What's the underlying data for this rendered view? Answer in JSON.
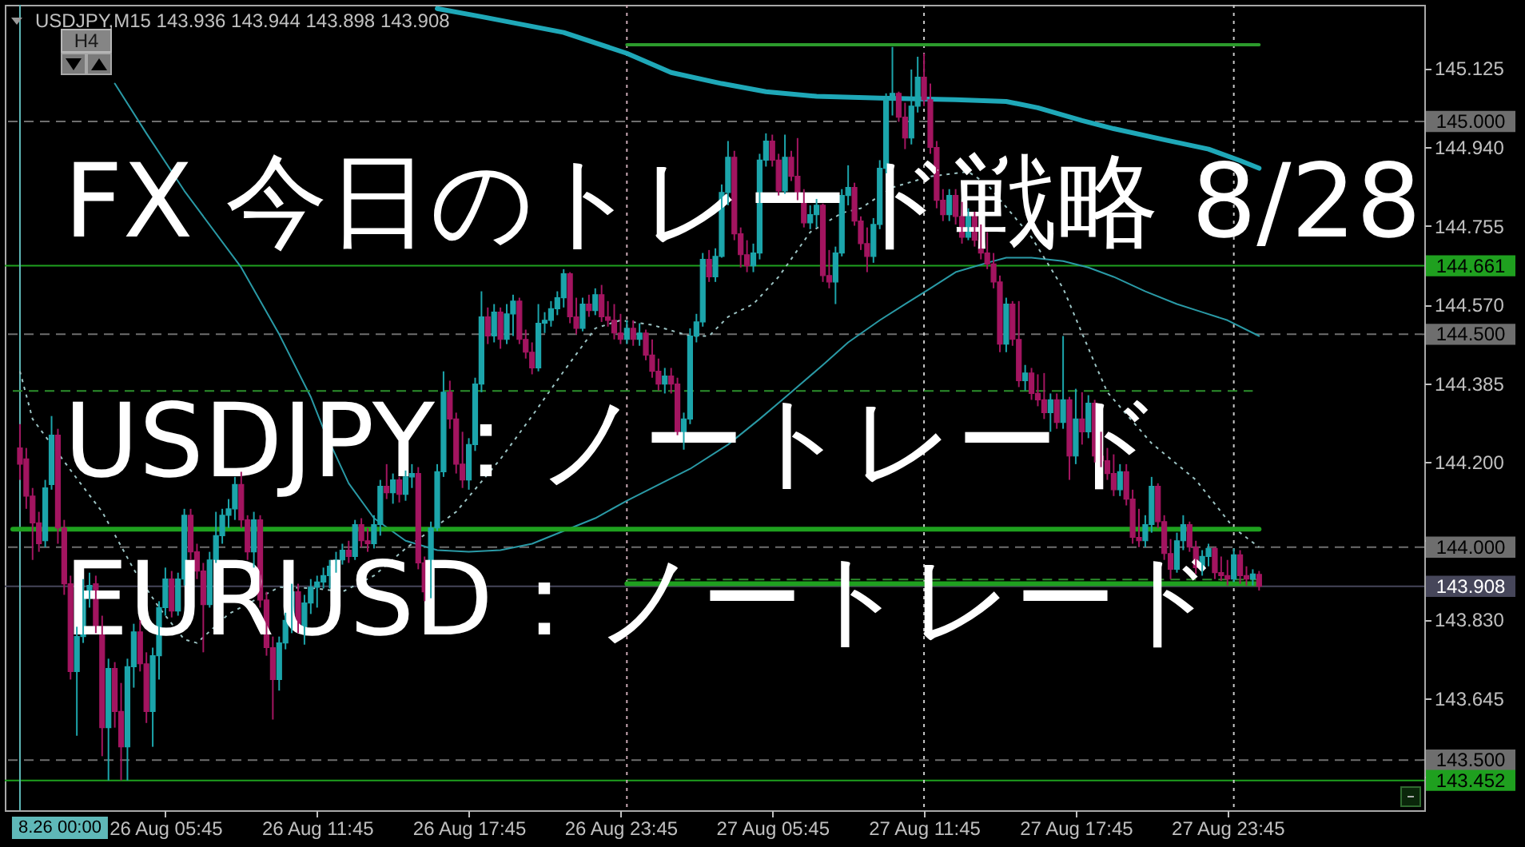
{
  "chart_data": {
    "type": "candlestick",
    "title": "FX 今日のトレード戦略 8/28",
    "subtitle": "USDJPY,M15 143.936 143.944 143.898 143.908",
    "annotations": [
      "USDJPY：ノートレード",
      "EURUSD：ノートレード",
      "H4"
    ],
    "xlim": [
      "--08-25T23:43",
      "--08-28T07:13"
    ],
    "xticks": [
      {
        "value": "--08-26T05:45",
        "label": "26 Aug 05:45"
      },
      {
        "value": "--08-26T11:45",
        "label": "26 Aug 11:45"
      },
      {
        "value": "--08-26T17:45",
        "label": "26 Aug 17:45"
      },
      {
        "value": "--08-26T23:45",
        "label": "26 Aug 23:45"
      },
      {
        "value": "--08-27T05:45",
        "label": "27 Aug 05:45"
      },
      {
        "value": "--08-27T11:45",
        "label": "27 Aug 11:45"
      },
      {
        "value": "--08-27T17:45",
        "label": "27 Aug 17:45"
      },
      {
        "value": "--08-27T23:45",
        "label": "27 Aug 23:45"
      }
    ],
    "ylim": [
      143.382,
      145.274
    ],
    "yticks": [
      145.125,
      {
        "value": 144.94,
        "label": "144.940"
      },
      144.755,
      {
        "value": 144.57,
        "label": "144.570"
      },
      144.385,
      {
        "value": 144.2,
        "label": "144.200"
      },
      {
        "value": 144.015,
        "label": null
      },
      {
        "value": 143.83,
        "label": "143.830"
      },
      143.645,
      {
        "value": 143.46,
        "label": null
      }
    ],
    "ref_lines": [
      {
        "axis": "y",
        "value": 145.0,
        "label": "145.000",
        "color": "#6e6e6e",
        "line_style": "dashed"
      },
      {
        "axis": "y",
        "value": 144.661,
        "label": "144.661",
        "color": "#1fa01f"
      },
      {
        "axis": "y",
        "value": 144.5,
        "label": "144.500",
        "color": "#6e6e6e",
        "line_style": "dashed"
      },
      {
        "axis": "y",
        "value": 144.0,
        "label": "144.000",
        "color": "#6e6e6e",
        "line_style": "dashed"
      },
      {
        "axis": "y",
        "value": 143.908,
        "label": "143.908",
        "color": "#46465a"
      },
      {
        "axis": "y",
        "value": 143.5,
        "label": "143.500",
        "color": "#6e6e6e",
        "line_style": "dashed"
      },
      {
        "axis": "y",
        "value": 143.452,
        "label": "143.452",
        "color": "#1fa01f"
      },
      {
        "axis": "x",
        "value": "--08-26T00:00",
        "label": "8.26 00:00",
        "color": "#5fb8b8"
      },
      {
        "axis": "x",
        "value": "--08-27T00:00",
        "color": "#c8a8b4",
        "line_style": "dotted"
      },
      {
        "axis": "x",
        "value": "--08-27T11:45",
        "color": "#c8c8c8",
        "line_style": "dotted"
      },
      {
        "axis": "x",
        "value": "--08-28T00:00",
        "color": "#c8c8c8",
        "line_style": "dotted"
      }
    ],
    "series": [
      {
        "x": [
          "--08-26T00:00",
          "--08-26T00:15",
          "--08-26T00:30",
          "--08-26T00:45",
          "--08-26T01:00",
          "--08-26T01:15",
          "--08-26T01:30",
          "--08-26T01:45",
          "--08-26T02:00",
          "--08-26T02:15",
          "--08-26T02:30",
          "--08-26T02:45",
          "--08-26T03:00",
          "--08-26T03:15",
          "--08-26T03:30",
          "--08-26T03:45",
          "--08-26T04:00",
          "--08-26T04:15",
          "--08-26T04:30",
          "--08-26T04:45",
          "--08-26T05:00",
          "--08-26T05:15",
          "--08-26T05:30",
          "--08-26T05:45",
          "--08-26T06:00",
          "--08-26T06:15",
          "--08-26T06:30",
          "--08-26T06:45",
          "--08-26T07:00",
          "--08-26T07:15",
          "--08-26T07:30",
          "--08-26T07:45",
          "--08-26T08:00",
          "--08-26T08:15",
          "--08-26T08:30",
          "--08-26T08:45",
          "--08-26T09:00",
          "--08-26T09:15",
          "--08-26T09:30",
          "--08-26T09:45",
          "--08-26T10:00",
          "--08-26T10:15",
          "--08-26T10:30",
          "--08-26T10:45",
          "--08-26T11:00",
          "--08-26T11:15",
          "--08-26T11:30",
          "--08-26T11:45",
          "--08-26T12:00",
          "--08-26T12:15",
          "--08-26T12:30",
          "--08-26T12:45",
          "--08-26T13:00",
          "--08-26T13:15",
          "--08-26T13:30",
          "--08-26T13:45",
          "--08-26T14:00",
          "--08-26T14:15",
          "--08-26T14:30",
          "--08-26T14:45",
          "--08-26T15:00",
          "--08-26T15:15",
          "--08-26T15:30",
          "--08-26T15:45",
          "--08-26T16:00",
          "--08-26T16:15",
          "--08-26T16:30",
          "--08-26T16:45",
          "--08-26T17:00",
          "--08-26T17:15",
          "--08-26T17:30",
          "--08-26T17:45",
          "--08-26T18:00",
          "--08-26T18:15",
          "--08-26T18:30",
          "--08-26T18:45",
          "--08-26T19:00",
          "--08-26T19:15",
          "--08-26T19:30",
          "--08-26T19:45",
          "--08-26T20:00",
          "--08-26T20:15",
          "--08-26T20:30",
          "--08-26T20:45",
          "--08-26T21:00",
          "--08-26T21:15",
          "--08-26T21:30",
          "--08-26T21:45",
          "--08-26T22:00",
          "--08-26T22:15",
          "--08-26T22:30",
          "--08-26T22:45",
          "--08-26T23:00",
          "--08-26T23:15",
          "--08-26T23:30",
          "--08-26T23:45",
          "--08-27T00:00",
          "--08-27T00:15",
          "--08-27T00:30",
          "--08-27T00:45",
          "--08-27T01:00",
          "--08-27T01:15",
          "--08-27T01:30",
          "--08-27T01:45",
          "--08-27T02:00",
          "--08-27T02:15",
          "--08-27T02:30",
          "--08-27T02:45",
          "--08-27T03:00",
          "--08-27T03:15",
          "--08-27T03:30",
          "--08-27T03:45",
          "--08-27T04:00",
          "--08-27T04:15",
          "--08-27T04:30",
          "--08-27T04:45",
          "--08-27T05:00",
          "--08-27T05:15",
          "--08-27T05:30",
          "--08-27T05:45",
          "--08-27T06:00",
          "--08-27T06:15",
          "--08-27T06:30",
          "--08-27T06:45",
          "--08-27T07:00",
          "--08-27T07:15",
          "--08-27T07:30",
          "--08-27T07:45",
          "--08-27T08:00",
          "--08-27T08:15",
          "--08-27T08:30",
          "--08-27T08:45",
          "--08-27T09:00",
          "--08-27T09:15",
          "--08-27T09:30",
          "--08-27T09:45",
          "--08-27T10:00",
          "--08-27T10:15",
          "--08-27T10:30",
          "--08-27T10:45",
          "--08-27T11:00",
          "--08-27T11:15",
          "--08-27T11:30",
          "--08-27T11:45",
          "--08-27T12:00",
          "--08-27T12:15",
          "--08-27T12:30",
          "--08-27T12:45",
          "--08-27T13:00",
          "--08-27T13:15",
          "--08-27T13:30",
          "--08-27T13:45",
          "--08-27T14:00",
          "--08-27T14:15",
          "--08-27T14:30",
          "--08-27T14:45",
          "--08-27T15:00",
          "--08-27T15:15",
          "--08-27T15:30",
          "--08-27T15:45",
          "--08-27T16:00",
          "--08-27T16:15",
          "--08-27T16:30",
          "--08-27T16:45",
          "--08-27T17:00",
          "--08-27T17:15",
          "--08-27T17:30",
          "--08-27T17:45",
          "--08-27T18:00",
          "--08-27T18:15",
          "--08-27T18:30",
          "--08-27T18:45",
          "--08-27T19:00",
          "--08-27T19:15",
          "--08-27T19:30",
          "--08-27T19:45",
          "--08-27T20:00",
          "--08-27T20:15",
          "--08-27T20:30",
          "--08-27T20:45",
          "--08-27T21:00",
          "--08-27T21:15",
          "--08-27T21:30",
          "--08-27T21:45",
          "--08-27T22:00",
          "--08-27T22:15",
          "--08-27T22:30",
          "--08-27T22:45",
          "--08-27T23:00",
          "--08-27T23:15",
          "--08-27T23:30",
          "--08-27T23:45",
          "--08-28T00:00",
          "--08-28T00:15",
          "--08-28T00:30",
          "--08-28T00:45",
          "--08-28T01:00"
        ],
        "ohlc": [
          [
            144.233,
            144.289,
            144.158,
            144.195
          ],
          [
            144.207,
            144.233,
            144.09,
            144.12
          ],
          [
            144.12,
            144.139,
            143.97,
            144.057
          ],
          [
            144.057,
            144.083,
            143.989,
            144.008
          ],
          [
            144.015,
            144.158,
            144.0,
            144.139
          ],
          [
            144.147,
            144.308,
            144.135,
            144.263
          ],
          [
            144.263,
            144.278,
            144.008,
            144.045
          ],
          [
            144.045,
            144.064,
            143.888,
            143.914
          ],
          [
            143.914,
            143.933,
            143.689,
            143.708
          ],
          [
            143.708,
            143.813,
            143.557,
            143.79
          ],
          [
            143.79,
            143.925,
            143.775,
            143.895
          ],
          [
            143.895,
            143.94,
            143.858,
            143.91
          ],
          [
            143.914,
            143.933,
            143.798,
            143.813
          ],
          [
            143.813,
            143.839,
            143.509,
            143.576
          ],
          [
            143.576,
            143.738,
            143.452,
            143.715
          ],
          [
            143.715,
            143.73,
            143.576,
            143.614
          ],
          [
            143.614,
            143.681,
            143.452,
            143.531
          ],
          [
            143.531,
            143.738,
            143.452,
            143.719
          ],
          [
            143.719,
            143.82,
            143.67,
            143.801
          ],
          [
            143.801,
            143.828,
            143.708,
            143.726
          ],
          [
            143.726,
            143.753,
            143.587,
            143.614
          ],
          [
            143.614,
            143.764,
            143.531,
            143.745
          ],
          [
            143.745,
            143.873,
            143.689,
            143.858
          ],
          [
            143.858,
            143.952,
            143.839,
            143.925
          ],
          [
            143.925,
            143.944,
            143.835,
            143.85
          ],
          [
            143.85,
            143.94,
            143.839,
            143.925
          ],
          [
            143.925,
            144.09,
            143.91,
            144.075
          ],
          [
            144.075,
            144.09,
            143.97,
            143.989
          ],
          [
            143.989,
            144.008,
            143.925,
            143.944
          ],
          [
            143.944,
            143.963,
            143.753,
            143.865
          ],
          [
            143.865,
            143.989,
            143.858,
            143.97
          ],
          [
            143.97,
            144.083,
            143.963,
            144.027
          ],
          [
            144.027,
            144.09,
            144.008,
            144.075
          ],
          [
            144.075,
            144.113,
            144.045,
            144.09
          ],
          [
            144.09,
            144.165,
            144.064,
            144.147
          ],
          [
            144.147,
            144.177,
            144.045,
            144.064
          ],
          [
            144.064,
            144.075,
            143.97,
            143.989
          ],
          [
            143.989,
            144.083,
            143.952,
            144.064
          ],
          [
            144.064,
            144.075,
            143.858,
            143.876
          ],
          [
            143.876,
            143.895,
            143.745,
            143.764
          ],
          [
            143.764,
            143.79,
            143.595,
            143.689
          ],
          [
            143.689,
            143.79,
            143.663,
            143.775
          ],
          [
            143.775,
            143.846,
            143.76,
            143.828
          ],
          [
            143.828,
            143.914,
            143.798,
            143.895
          ],
          [
            143.895,
            143.914,
            143.798,
            143.813
          ],
          [
            143.813,
            143.888,
            143.771,
            143.869
          ],
          [
            143.869,
            143.925,
            143.843,
            143.906
          ],
          [
            143.906,
            143.933,
            143.858,
            143.918
          ],
          [
            143.918,
            143.952,
            143.903,
            143.933
          ],
          [
            143.933,
            143.97,
            143.903,
            143.955
          ],
          [
            143.955,
            143.989,
            143.94,
            143.97
          ],
          [
            143.97,
            144.008,
            143.959,
            143.993
          ],
          [
            143.993,
            144.015,
            143.963,
            143.978
          ],
          [
            143.978,
            144.064,
            143.97,
            144.053
          ],
          [
            144.053,
            144.068,
            144.0,
            144.015
          ],
          [
            144.015,
            144.045,
            143.989,
            144.008
          ],
          [
            144.008,
            144.075,
            143.997,
            144.053
          ],
          [
            144.053,
            144.158,
            144.027,
            144.143
          ],
          [
            144.143,
            144.195,
            144.113,
            144.128
          ],
          [
            144.128,
            144.173,
            144.102,
            144.158
          ],
          [
            144.158,
            144.165,
            144.105,
            144.124
          ],
          [
            144.124,
            144.18,
            144.109,
            144.165
          ],
          [
            144.165,
            144.195,
            144.139,
            144.173
          ],
          [
            144.173,
            144.188,
            143.948,
            143.963
          ],
          [
            143.963,
            143.978,
            143.873,
            143.895
          ],
          [
            143.895,
            144.06,
            143.88,
            144.045
          ],
          [
            144.045,
            144.195,
            144.038,
            144.177
          ],
          [
            144.177,
            144.413,
            144.165,
            144.364
          ],
          [
            144.364,
            144.391,
            144.278,
            144.301
          ],
          [
            144.301,
            144.316,
            144.173,
            144.195
          ],
          [
            144.195,
            144.271,
            144.139,
            144.158
          ],
          [
            144.158,
            144.256,
            144.135,
            144.241
          ],
          [
            144.241,
            144.398,
            144.226,
            144.383
          ],
          [
            144.383,
            144.601,
            144.364,
            144.541
          ],
          [
            144.541,
            144.563,
            144.477,
            144.496
          ],
          [
            144.496,
            144.571,
            144.481,
            144.552
          ],
          [
            144.552,
            144.563,
            144.466,
            144.488
          ],
          [
            144.488,
            144.571,
            144.477,
            144.548
          ],
          [
            144.548,
            144.593,
            144.496,
            144.578
          ],
          [
            144.578,
            144.586,
            144.477,
            144.488
          ],
          [
            144.488,
            144.511,
            144.443,
            144.458
          ],
          [
            144.458,
            144.481,
            144.406,
            144.421
          ],
          [
            144.421,
            144.571,
            144.413,
            144.526
          ],
          [
            144.526,
            144.552,
            144.503,
            144.533
          ],
          [
            144.533,
            144.578,
            144.518,
            144.56
          ],
          [
            144.56,
            144.601,
            144.545,
            144.586
          ],
          [
            144.586,
            144.653,
            144.563,
            144.642
          ],
          [
            144.642,
            144.646,
            144.526,
            144.541
          ],
          [
            144.541,
            144.586,
            144.5,
            144.514
          ],
          [
            144.514,
            144.586,
            144.507,
            144.571
          ],
          [
            144.571,
            144.593,
            144.541,
            144.556
          ],
          [
            144.556,
            144.608,
            144.545,
            144.593
          ],
          [
            144.593,
            144.616,
            144.529,
            144.541
          ],
          [
            144.541,
            144.578,
            144.518,
            144.533
          ],
          [
            144.533,
            144.571,
            144.488,
            144.503
          ],
          [
            144.503,
            144.548,
            144.477,
            144.488
          ],
          [
            144.488,
            144.533,
            144.477,
            144.514
          ],
          [
            144.514,
            144.533,
            144.473,
            144.488
          ],
          [
            144.488,
            144.526,
            144.473,
            144.503
          ],
          [
            144.503,
            144.511,
            144.439,
            144.451
          ],
          [
            144.451,
            144.488,
            144.398,
            144.413
          ],
          [
            144.413,
            144.443,
            144.368,
            144.383
          ],
          [
            144.383,
            144.421,
            144.361,
            144.402
          ],
          [
            144.402,
            144.421,
            144.361,
            144.383
          ],
          [
            144.383,
            144.398,
            144.263,
            144.271
          ],
          [
            144.271,
            144.316,
            144.229,
            144.301
          ],
          [
            144.301,
            144.514,
            144.289,
            144.496
          ],
          [
            144.496,
            144.548,
            144.481,
            144.529
          ],
          [
            144.529,
            144.691,
            144.518,
            144.676
          ],
          [
            144.676,
            144.698,
            144.623,
            144.635
          ],
          [
            144.635,
            144.702,
            144.623,
            144.683
          ],
          [
            144.683,
            144.852,
            144.68,
            144.833
          ],
          [
            144.833,
            144.954,
            144.803,
            144.916
          ],
          [
            144.916,
            144.931,
            144.721,
            144.736
          ],
          [
            144.736,
            144.751,
            144.657,
            144.687
          ],
          [
            144.687,
            144.721,
            144.646,
            144.661
          ],
          [
            144.661,
            144.713,
            144.646,
            144.691
          ],
          [
            144.691,
            144.924,
            144.676,
            144.909
          ],
          [
            144.909,
            144.972,
            144.894,
            144.954
          ],
          [
            144.954,
            144.969,
            144.894,
            144.909
          ],
          [
            144.909,
            144.924,
            144.826,
            144.837
          ],
          [
            144.837,
            144.969,
            144.83,
            144.916
          ],
          [
            144.916,
            144.931,
            144.86,
            144.871
          ],
          [
            144.871,
            144.961,
            144.815,
            144.826
          ],
          [
            144.826,
            144.841,
            144.751,
            144.762
          ],
          [
            144.762,
            144.803,
            144.747,
            144.781
          ],
          [
            144.781,
            144.818,
            144.751,
            144.803
          ],
          [
            144.803,
            144.807,
            144.623,
            144.638
          ],
          [
            144.638,
            144.698,
            144.608,
            144.623
          ],
          [
            144.623,
            144.706,
            144.571,
            144.691
          ],
          [
            144.691,
            144.841,
            144.683,
            144.826
          ],
          [
            144.826,
            144.897,
            144.803,
            144.845
          ],
          [
            144.845,
            144.856,
            144.755,
            144.766
          ],
          [
            144.766,
            144.777,
            144.698,
            144.713
          ],
          [
            144.713,
            144.751,
            144.646,
            144.683
          ],
          [
            144.683,
            144.773,
            144.668,
            144.758
          ],
          [
            144.758,
            144.909,
            144.747,
            144.89
          ],
          [
            144.89,
            145.066,
            144.878,
            145.051
          ],
          [
            145.051,
            145.175,
            145.014,
            145.066
          ],
          [
            145.066,
            145.07,
            144.999,
            145.01
          ],
          [
            145.01,
            145.044,
            144.935,
            144.961
          ],
          [
            144.961,
            145.122,
            144.946,
            145.036
          ],
          [
            145.036,
            145.152,
            145.021,
            145.104
          ],
          [
            145.104,
            145.16,
            145.036,
            145.051
          ],
          [
            145.051,
            145.089,
            144.924,
            144.939
          ],
          [
            144.939,
            144.954,
            144.796,
            144.815
          ],
          [
            144.815,
            144.841,
            144.766,
            144.781
          ],
          [
            144.781,
            144.841,
            144.766,
            144.826
          ],
          [
            144.826,
            144.841,
            144.758,
            144.777
          ],
          [
            144.777,
            144.811,
            144.713,
            144.728
          ],
          [
            144.728,
            144.796,
            144.721,
            144.777
          ],
          [
            144.777,
            144.788,
            144.706,
            144.721
          ],
          [
            144.721,
            144.758,
            144.676,
            144.691
          ],
          [
            144.691,
            144.74,
            144.653,
            144.665
          ],
          [
            144.665,
            144.691,
            144.608,
            144.623
          ],
          [
            144.623,
            144.638,
            144.458,
            144.477
          ],
          [
            144.477,
            144.586,
            144.458,
            144.571
          ],
          [
            144.571,
            144.578,
            144.473,
            144.488
          ],
          [
            144.488,
            144.578,
            144.376,
            144.391
          ],
          [
            144.391,
            144.428,
            144.368,
            144.409
          ],
          [
            144.409,
            144.421,
            144.346,
            144.361
          ],
          [
            144.361,
            144.406,
            144.331,
            144.346
          ],
          [
            144.346,
            144.409,
            144.301,
            144.316
          ],
          [
            144.316,
            144.361,
            144.271,
            144.346
          ],
          [
            144.346,
            144.361,
            144.278,
            144.293
          ],
          [
            144.293,
            144.496,
            144.278,
            144.346
          ],
          [
            144.346,
            144.353,
            144.158,
            144.214
          ],
          [
            144.214,
            144.372,
            144.195,
            144.301
          ],
          [
            144.301,
            144.364,
            144.241,
            144.271
          ],
          [
            144.271,
            144.357,
            144.256,
            144.338
          ],
          [
            144.338,
            144.346,
            144.199,
            144.214
          ],
          [
            144.214,
            144.271,
            144.188,
            144.203
          ],
          [
            144.203,
            144.233,
            144.158,
            144.173
          ],
          [
            144.173,
            144.218,
            144.12,
            144.135
          ],
          [
            144.135,
            144.195,
            144.12,
            144.177
          ],
          [
            144.177,
            144.195,
            144.098,
            144.113
          ],
          [
            144.113,
            144.135,
            144.008,
            144.023
          ],
          [
            144.023,
            144.09,
            144.0,
            144.015
          ],
          [
            144.015,
            144.075,
            144.0,
            144.053
          ],
          [
            144.053,
            144.165,
            144.034,
            144.143
          ],
          [
            144.143,
            144.15,
            144.045,
            144.06
          ],
          [
            144.06,
            144.075,
            143.97,
            143.985
          ],
          [
            143.985,
            144.019,
            143.925,
            143.948
          ],
          [
            143.948,
            144.034,
            143.94,
            144.015
          ],
          [
            144.015,
            144.075,
            143.993,
            144.053
          ],
          [
            144.053,
            144.06,
            143.989,
            144.0
          ],
          [
            144.0,
            144.015,
            143.937,
            143.952
          ],
          [
            143.952,
            143.993,
            143.933,
            143.978
          ],
          [
            143.978,
            144.008,
            143.955,
            143.997
          ],
          [
            143.997,
            144.0,
            143.925,
            143.94
          ],
          [
            143.94,
            143.978,
            143.921,
            143.933
          ],
          [
            143.933,
            143.97,
            143.91,
            143.925
          ],
          [
            143.925,
            143.997,
            143.918,
            143.982
          ],
          [
            143.982,
            143.993,
            143.914,
            143.933
          ],
          [
            143.933,
            143.955,
            143.91,
            143.925
          ],
          [
            143.925,
            143.948,
            143.91,
            143.937
          ],
          [
            143.936,
            143.944,
            143.898,
            143.908
          ]
        ],
        "colors": [
          "#a31560",
          "#a31560",
          "#a31560",
          "#a31560",
          "#1ca5ab",
          "#1ca5ab",
          "#a31560",
          "#a31560",
          "#a31560",
          "#1ca5ab",
          "#1ca5ab",
          "#1ca5ab",
          "#a31560",
          "#a31560",
          "#1ca5ab",
          "#a31560",
          "#a31560",
          "#1ca5ab",
          "#1ca5ab",
          "#a31560",
          "#a31560",
          "#1ca5ab",
          "#1ca5ab",
          "#1ca5ab",
          "#a31560",
          "#1ca5ab",
          "#1ca5ab",
          "#a31560",
          "#a31560",
          "#a31560",
          "#1ca5ab",
          "#1ca5ab",
          "#1ca5ab",
          "#1ca5ab",
          "#1ca5ab",
          "#a31560",
          "#a31560",
          "#1ca5ab",
          "#a31560",
          "#a31560",
          "#a31560",
          "#1ca5ab",
          "#1ca5ab",
          "#1ca5ab",
          "#a31560",
          "#1ca5ab",
          "#1ca5ab",
          "#1ca5ab",
          "#1ca5ab",
          "#1ca5ab",
          "#1ca5ab",
          "#1ca5ab",
          "#a31560",
          "#1ca5ab",
          "#a31560",
          "#a31560",
          "#1ca5ab",
          "#1ca5ab",
          "#a31560",
          "#1ca5ab",
          "#a31560",
          "#1ca5ab",
          "#1ca5ab",
          "#a31560",
          "#a31560",
          "#1ca5ab",
          "#1ca5ab",
          "#1ca5ab",
          "#a31560",
          "#a31560",
          "#a31560",
          "#1ca5ab",
          "#1ca5ab",
          "#1ca5ab",
          "#a31560",
          "#1ca5ab",
          "#a31560",
          "#1ca5ab",
          "#1ca5ab",
          "#a31560",
          "#a31560",
          "#a31560",
          "#1ca5ab",
          "#1ca5ab",
          "#1ca5ab",
          "#1ca5ab",
          "#1ca5ab",
          "#a31560",
          "#a31560",
          "#1ca5ab",
          "#a31560",
          "#1ca5ab",
          "#a31560",
          "#a31560",
          "#a31560",
          "#a31560",
          "#1ca5ab",
          "#a31560",
          "#1ca5ab",
          "#a31560",
          "#a31560",
          "#a31560",
          "#1ca5ab",
          "#a31560",
          "#a31560",
          "#1ca5ab",
          "#1ca5ab",
          "#1ca5ab",
          "#1ca5ab",
          "#a31560",
          "#1ca5ab",
          "#1ca5ab",
          "#1ca5ab",
          "#a31560",
          "#a31560",
          "#a31560",
          "#1ca5ab",
          "#1ca5ab",
          "#1ca5ab",
          "#a31560",
          "#a31560",
          "#1ca5ab",
          "#a31560",
          "#a31560",
          "#a31560",
          "#1ca5ab",
          "#1ca5ab",
          "#a31560",
          "#a31560",
          "#1ca5ab",
          "#1ca5ab",
          "#1ca5ab",
          "#a31560",
          "#a31560",
          "#a31560",
          "#1ca5ab",
          "#1ca5ab",
          "#1ca5ab",
          "#1ca5ab",
          "#a31560",
          "#a31560",
          "#1ca5ab",
          "#1ca5ab",
          "#a31560",
          "#a31560",
          "#a31560",
          "#a31560",
          "#1ca5ab",
          "#a31560",
          "#a31560",
          "#1ca5ab",
          "#a31560",
          "#a31560",
          "#a31560",
          "#a31560",
          "#a31560",
          "#1ca5ab",
          "#a31560",
          "#a31560",
          "#1ca5ab",
          "#a31560",
          "#a31560",
          "#a31560",
          "#1ca5ab",
          "#a31560",
          "#1ca5ab",
          "#a31560",
          "#1ca5ab",
          "#a31560",
          "#1ca5ab",
          "#a31560",
          "#a31560",
          "#a31560",
          "#a31560",
          "#1ca5ab",
          "#a31560",
          "#a31560",
          "#a31560",
          "#1ca5ab",
          "#1ca5ab",
          "#a31560",
          "#a31560",
          "#a31560",
          "#1ca5ab",
          "#1ca5ab",
          "#a31560",
          "#a31560",
          "#1ca5ab",
          "#1ca5ab",
          "#a31560",
          "#a31560",
          "#a31560",
          "#1ca5ab",
          "#a31560",
          "#a31560",
          "#1ca5ab",
          "#a31560"
        ]
      },
      {
        "type": "line",
        "color": "#1fa8b8",
        "x": [
          "--08-26T16:30",
          "--08-26T18:15",
          "--08-26T21:30",
          "--08-27T00:00",
          "--08-27T01:45",
          "--08-27T03:45",
          "--08-27T05:30",
          "--08-27T07:30",
          "--08-27T10:00",
          "--08-27T13:00",
          "--08-27T15:00",
          "--08-27T16:15",
          "--08-27T18:00",
          "--08-27T19:15",
          "--08-27T21:15",
          "--08-27T23:00",
          "--08-28T00:15",
          "--08-28T01:00"
        ],
        "values": [
          145.265,
          145.246,
          145.209,
          145.16,
          145.115,
          145.089,
          145.07,
          145.059,
          145.055,
          145.051,
          145.047,
          145.032,
          145.002,
          144.983,
          144.957,
          144.935,
          144.908,
          144.89
        ]
      },
      {
        "type": "line",
        "color": "#2a9aa6",
        "x": [
          "--08-26T03:45",
          "--08-26T05:00",
          "--08-26T06:30",
          "--08-26T08:45",
          "--08-26T10:15",
          "--08-26T11:30",
          "--08-26T12:00",
          "--08-26T13:00",
          "--08-26T14:00",
          "--08-26T15:15",
          "--08-26T16:30",
          "--08-26T17:45",
          "--08-26T19:00",
          "--08-26T20:15",
          "--08-26T21:30",
          "--08-26T22:45",
          "--08-27T00:00",
          "--08-27T01:30",
          "--08-27T02:30",
          "--08-27T04:00",
          "--08-27T05:15",
          "--08-27T06:30",
          "--08-27T07:45",
          "--08-27T08:45",
          "--08-27T10:00",
          "--08-27T11:00",
          "--08-27T12:00",
          "--08-27T13:00",
          "--08-27T14:15",
          "--08-27T15:00",
          "--08-27T16:00",
          "--08-27T17:15",
          "--08-27T18:15",
          "--08-27T19:15",
          "--08-27T20:30",
          "--08-27T21:45",
          "--08-27T22:45",
          "--08-27T23:45",
          "--08-28T01:00"
        ],
        "values": [
          145.089,
          144.972,
          144.837,
          144.657,
          144.5,
          144.353,
          144.278,
          144.15,
          144.068,
          144.015,
          143.993,
          143.989,
          143.993,
          144.008,
          144.038,
          144.068,
          144.109,
          144.154,
          144.184,
          144.241,
          144.301,
          144.364,
          144.428,
          144.481,
          144.533,
          144.571,
          144.608,
          144.646,
          144.668,
          144.68,
          144.68,
          144.672,
          144.657,
          144.635,
          144.601,
          144.571,
          144.552,
          144.533,
          144.496
        ]
      },
      {
        "type": "line",
        "color": "#9cc4c4",
        "line_style": "dotted",
        "x": [
          "--08-26T00:00",
          "--08-26T00:30",
          "--08-26T01:15",
          "--08-26T02:15",
          "--08-26T03:15",
          "--08-26T04:30",
          "--08-26T05:30",
          "--08-26T06:30",
          "--08-26T07:00",
          "--08-26T08:15",
          "--08-26T10:15",
          "--08-26T11:45",
          "--08-26T12:45",
          "--08-26T14:00",
          "--08-26T15:15",
          "--08-26T17:15",
          "--08-26T19:00",
          "--08-26T20:15",
          "--08-26T21:30",
          "--08-26T22:45",
          "--08-26T23:45",
          "--08-27T01:00",
          "--08-27T02:30",
          "--08-27T03:15",
          "--08-27T04:00",
          "--08-27T05:00",
          "--08-27T06:00",
          "--08-27T07:15",
          "--08-27T08:30",
          "--08-27T09:15",
          "--08-27T10:30",
          "--08-27T12:00",
          "--08-27T13:30",
          "--08-27T14:15",
          "--08-27T16:00",
          "--08-27T17:15",
          "--08-27T18:30",
          "--08-27T19:00",
          "--08-27T20:45",
          "--08-27T22:30",
          "--08-28T00:00",
          "--08-28T01:00"
        ],
        "values": [
          144.413,
          144.301,
          144.241,
          144.161,
          144.083,
          143.948,
          143.858,
          143.783,
          143.775,
          143.843,
          143.906,
          143.903,
          143.895,
          143.933,
          143.997,
          144.083,
          144.207,
          144.308,
          144.413,
          144.514,
          144.533,
          144.522,
          144.496,
          144.496,
          144.541,
          144.571,
          144.635,
          144.74,
          144.785,
          144.796,
          144.845,
          144.871,
          144.882,
          144.852,
          144.728,
          144.608,
          144.432,
          144.364,
          144.244,
          144.158,
          144.045,
          144.0
        ]
      },
      {
        "type": "line",
        "color": "#2c9a2c",
        "x": [
          "--08-27T00:00",
          "--08-28T01:00"
        ],
        "values": [
          145.18,
          145.18
        ]
      },
      {
        "type": "line",
        "color": "#2c8f2c",
        "line_style": "dashed",
        "x": [
          "--08-25T23:43",
          "--08-28T00:45"
        ],
        "values": [
          144.367,
          144.367
        ]
      },
      {
        "type": "line",
        "color": "#1fa01f",
        "x": [
          "--08-25T23:43",
          "--08-28T01:00"
        ],
        "values": [
          144.042,
          144.042
        ]
      },
      {
        "type": "line",
        "color": "#2c8f2c",
        "line_style": "dashed",
        "x": [
          "--08-27T00:00",
          "--08-28T01:00"
        ],
        "values": [
          143.924,
          143.924
        ]
      },
      {
        "type": "line",
        "color": "#1fa01f",
        "x": [
          "--08-27T00:00",
          "--08-28T01:00"
        ],
        "values": [
          143.914,
          143.914
        ]
      }
    ]
  }
}
